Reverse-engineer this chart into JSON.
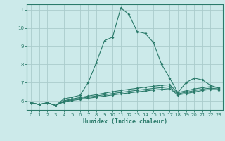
{
  "title": "",
  "xlabel": "Humidex (Indice chaleur)",
  "bg_color": "#cceaea",
  "grid_color": "#aacccc",
  "line_color": "#2a7a6a",
  "xlim": [
    -0.5,
    23.5
  ],
  "ylim": [
    5.5,
    11.3
  ],
  "yticks": [
    6,
    7,
    8,
    9,
    10,
    11
  ],
  "xticks": [
    0,
    1,
    2,
    3,
    4,
    5,
    6,
    7,
    8,
    9,
    10,
    11,
    12,
    13,
    14,
    15,
    16,
    17,
    18,
    19,
    20,
    21,
    22,
    23
  ],
  "line1_x": [
    0,
    1,
    2,
    3,
    4,
    5,
    6,
    7,
    8,
    9,
    10,
    11,
    12,
    13,
    14,
    15,
    16,
    17,
    18,
    19,
    20,
    21,
    22,
    23
  ],
  "line1_y": [
    5.9,
    5.8,
    5.9,
    5.75,
    6.1,
    6.2,
    6.3,
    7.0,
    8.1,
    9.3,
    9.5,
    11.1,
    10.75,
    9.8,
    9.7,
    9.2,
    8.0,
    7.25,
    6.45,
    7.0,
    7.25,
    7.15,
    6.85,
    6.7
  ],
  "line2_x": [
    0,
    1,
    2,
    3,
    4,
    5,
    6,
    7,
    8,
    9,
    10,
    11,
    12,
    13,
    14,
    15,
    16,
    17,
    18,
    19,
    20,
    21,
    22,
    23
  ],
  "line2_y": [
    5.9,
    5.8,
    5.9,
    5.75,
    6.0,
    6.1,
    6.18,
    6.26,
    6.34,
    6.42,
    6.5,
    6.57,
    6.63,
    6.69,
    6.75,
    6.8,
    6.85,
    6.88,
    6.45,
    6.55,
    6.65,
    6.72,
    6.78,
    6.72
  ],
  "line3_x": [
    0,
    1,
    2,
    3,
    4,
    5,
    6,
    7,
    8,
    9,
    10,
    11,
    12,
    13,
    14,
    15,
    16,
    17,
    18,
    19,
    20,
    21,
    22,
    23
  ],
  "line3_y": [
    5.9,
    5.8,
    5.9,
    5.75,
    5.97,
    6.06,
    6.13,
    6.2,
    6.27,
    6.33,
    6.4,
    6.46,
    6.52,
    6.58,
    6.63,
    6.68,
    6.73,
    6.77,
    6.38,
    6.47,
    6.56,
    6.64,
    6.7,
    6.65
  ],
  "line4_x": [
    0,
    1,
    2,
    3,
    4,
    5,
    6,
    7,
    8,
    9,
    10,
    11,
    12,
    13,
    14,
    15,
    16,
    17,
    18,
    19,
    20,
    21,
    22,
    23
  ],
  "line4_y": [
    5.9,
    5.8,
    5.9,
    5.75,
    5.94,
    6.02,
    6.08,
    6.14,
    6.2,
    6.26,
    6.32,
    6.38,
    6.43,
    6.49,
    6.54,
    6.59,
    6.63,
    6.67,
    6.32,
    6.4,
    6.48,
    6.57,
    6.63,
    6.6
  ]
}
